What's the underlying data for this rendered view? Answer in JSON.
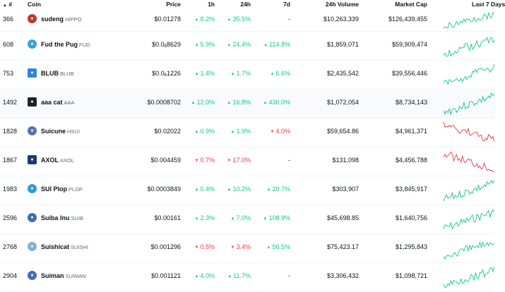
{
  "columns": {
    "rank": "#",
    "coin": "Coin",
    "price": "Price",
    "h1": "1h",
    "h24": "24h",
    "d7": "7d",
    "volume": "24h Volume",
    "mcap": "Market Cap",
    "last7": "Last 7 Days"
  },
  "colors": {
    "up": "#16c784",
    "down": "#ea3943"
  },
  "rows": [
    {
      "rank": "366",
      "name": "sudeng",
      "symbol": "HIPPO",
      "price_main": "$0.01278",
      "price_sub": "",
      "price_tail": "",
      "h1": "8.2%",
      "h1_dir": "up",
      "h24": "35.5%",
      "h24_dir": "up",
      "d7": "-",
      "d7_dir": "none",
      "volume": "$10,263,339",
      "mcap": "$126,439,455",
      "spark_trend": "up",
      "icon": "hippo-icon",
      "icon_color": "#c0392b"
    },
    {
      "rank": "608",
      "name": "Fud the Pug",
      "symbol": "FUD",
      "price_main": "$0.0",
      "price_sub": "8",
      "price_tail": "8629",
      "h1": "5.9%",
      "h1_dir": "up",
      "h24": "24.4%",
      "h24_dir": "up",
      "d7": "114.8%",
      "d7_dir": "up",
      "volume": "$1,859,071",
      "mcap": "$59,909,474",
      "spark_trend": "up",
      "icon": "pug-icon",
      "icon_color": "#3aa0d8"
    },
    {
      "rank": "753",
      "name": "BLUB",
      "symbol": "BLUB",
      "price_main": "$0.0",
      "price_sub": "6",
      "price_tail": "1226",
      "h1": "1.4%",
      "h1_dir": "up",
      "h24": "1.7%",
      "h24_dir": "up",
      "d7": "6.6%",
      "d7_dir": "up",
      "volume": "$2,435,542",
      "mcap": "$39,556,446",
      "spark_trend": "up",
      "icon": "fish-icon",
      "icon_color": "#2e86de"
    },
    {
      "rank": "1492",
      "name": "aaa cat",
      "symbol": "AAA",
      "price_main": "$0.0008702",
      "price_sub": "",
      "price_tail": "",
      "h1": "12.0%",
      "h1_dir": "up",
      "h24": "16.8%",
      "h24_dir": "up",
      "d7": "430.0%",
      "d7_dir": "up",
      "volume": "$1,072,054",
      "mcap": "$8,734,143",
      "spark_trend": "up",
      "icon": "cat-icon",
      "icon_color": "#222222"
    },
    {
      "rank": "1828",
      "name": "Suicune",
      "symbol": "HSUI",
      "price_main": "$0.02022",
      "price_sub": "",
      "price_tail": "",
      "h1": "0.9%",
      "h1_dir": "up",
      "h24": "1.9%",
      "h24_dir": "up",
      "d7": "4.0%",
      "d7_dir": "down",
      "volume": "$59,654.86",
      "mcap": "$4,961,371",
      "spark_trend": "down",
      "icon": "suicune-icon",
      "icon_color": "#5b6fb5"
    },
    {
      "rank": "1867",
      "name": "AXOL",
      "symbol": "AXOL",
      "price_main": "$0.004459",
      "price_sub": "",
      "price_tail": "",
      "h1": "0.7%",
      "h1_dir": "down",
      "h24": "17.0%",
      "h24_dir": "down",
      "d7": "-",
      "d7_dir": "none",
      "volume": "$131,098",
      "mcap": "$4,456,788",
      "spark_trend": "down",
      "icon": "axolotl-icon",
      "icon_color": "#1f3a6e"
    },
    {
      "rank": "1983",
      "name": "SUI Plop",
      "symbol": "PLOP",
      "price_main": "$0.0003849",
      "price_sub": "",
      "price_tail": "",
      "h1": "0.4%",
      "h1_dir": "up",
      "h24": "10.2%",
      "h24_dir": "up",
      "d7": "20.7%",
      "d7_dir": "up",
      "volume": "$303,907",
      "mcap": "$3,845,917",
      "spark_trend": "up",
      "icon": "droplet-icon",
      "icon_color": "#2d9cdb"
    },
    {
      "rank": "2596",
      "name": "Suiba Inu",
      "symbol": "SUIB",
      "price_main": "$0.00161",
      "price_sub": "",
      "price_tail": "",
      "h1": "2.3%",
      "h1_dir": "up",
      "h24": "7.0%",
      "h24_dir": "up",
      "d7": "108.9%",
      "d7_dir": "up",
      "volume": "$45,698.85",
      "mcap": "$1,640,756",
      "spark_trend": "up",
      "icon": "shiba-icon",
      "icon_color": "#3b6db3"
    },
    {
      "rank": "2768",
      "name": "Suishicat",
      "symbol": "SUISHI",
      "price_main": "$0.001296",
      "price_sub": "",
      "price_tail": "",
      "h1": "0.5%",
      "h1_dir": "down",
      "h24": "3.4%",
      "h24_dir": "down",
      "d7": "56.5%",
      "d7_dir": "up",
      "volume": "$75,423.17",
      "mcap": "$1,295,843",
      "spark_trend": "up",
      "icon": "sushi-cat-icon",
      "icon_color": "#7fb3d5"
    },
    {
      "rank": "2904",
      "name": "Suiman",
      "symbol": "SUIMAN",
      "price_main": "$0.001121",
      "price_sub": "",
      "price_tail": "",
      "h1": "4.0%",
      "h1_dir": "up",
      "h24": "11.7%",
      "h24_dir": "up",
      "d7": "-",
      "d7_dir": "none",
      "volume": "$3,306,432",
      "mcap": "$1,098,721",
      "spark_trend": "up",
      "icon": "suiman-icon",
      "icon_color": "#4a69bd"
    }
  ]
}
